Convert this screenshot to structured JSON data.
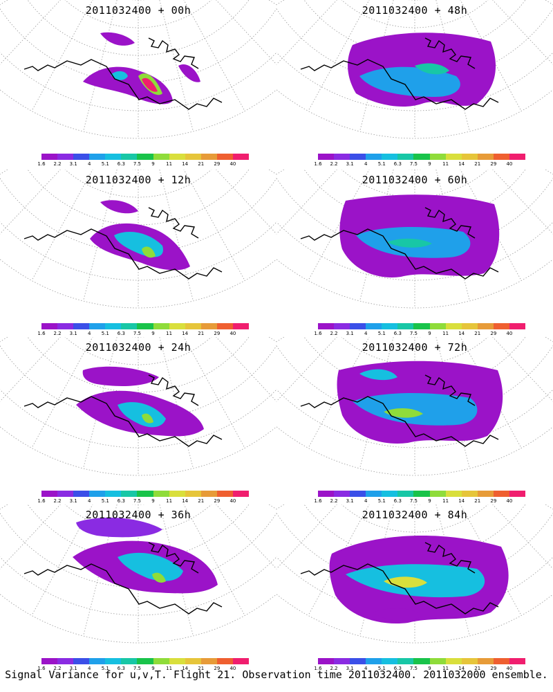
{
  "figure": {
    "caption": "Signal Variance for u,v,T. Flight 21. Observation time 2011032400. 2011032000 ensemble."
  },
  "colorbar": {
    "colors": [
      "#9b13c8",
      "#8a2be2",
      "#3b4fe8",
      "#1fa0ea",
      "#16bfe0",
      "#18c7a6",
      "#19c34a",
      "#8fdc3a",
      "#d9df3c",
      "#e6c53a",
      "#e79b38",
      "#ef5f30",
      "#f01e6e"
    ],
    "ticks": [
      "1.6",
      "2.2",
      "3.1",
      "4",
      "5.1",
      "6.3",
      "7.5",
      "9",
      "11",
      "14",
      "21",
      "29",
      "40"
    ]
  },
  "panels": [
    {
      "title": "2011032400 + 00h"
    },
    {
      "title": "2011032400 + 48h"
    },
    {
      "title": "2011032400 + 12h"
    },
    {
      "title": "2011032400 + 60h"
    },
    {
      "title": "2011032400 + 24h"
    },
    {
      "title": "2011032400 + 72h"
    },
    {
      "title": "2011032400 + 36h"
    },
    {
      "title": "2011032400 + 84h"
    }
  ]
}
